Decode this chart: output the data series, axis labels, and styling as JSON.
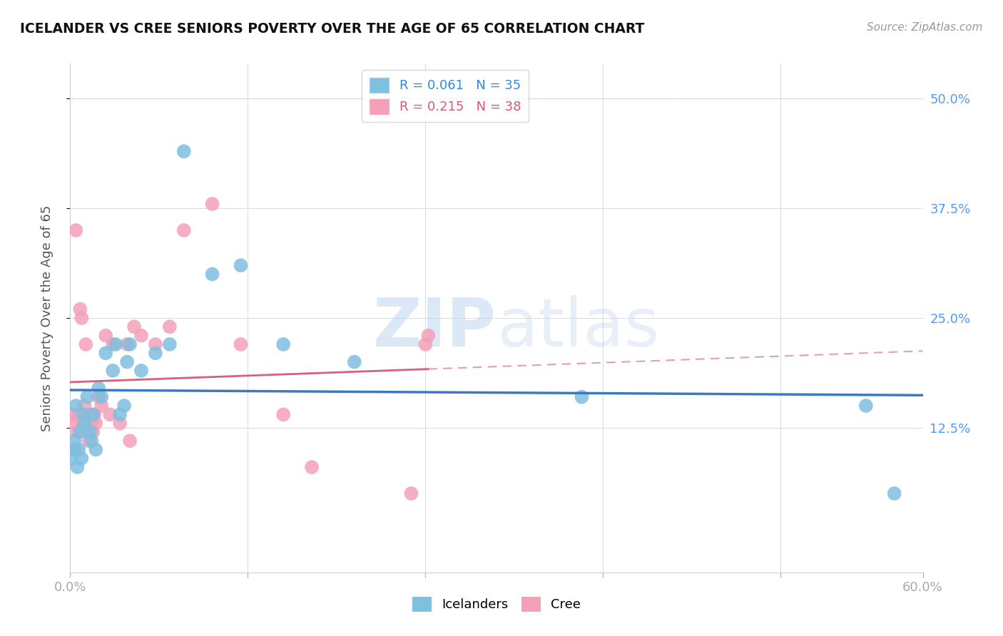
{
  "title": "ICELANDER VS CREE SENIORS POVERTY OVER THE AGE OF 65 CORRELATION CHART",
  "source": "Source: ZipAtlas.com",
  "ylabel": "Seniors Poverty Over the Age of 65",
  "xlim": [
    0.0,
    0.6
  ],
  "ylim": [
    -0.04,
    0.54
  ],
  "ytick_vals": [
    0.125,
    0.25,
    0.375,
    0.5
  ],
  "right_ytick_labels": [
    "12.5%",
    "25.0%",
    "37.5%",
    "50.0%"
  ],
  "watermark": "ZIPatlas",
  "icelander_color": "#7fbfdf",
  "cree_color": "#f4a0b8",
  "icelander_line_color": "#3a7bbf",
  "cree_line_color": "#d9607a",
  "cree_dash_color": "#e0a0b0",
  "R_icelander": 0.061,
  "N_icelander": 35,
  "R_cree": 0.215,
  "N_cree": 38,
  "icelander_x": [
    0.001,
    0.002,
    0.003,
    0.004,
    0.005,
    0.006,
    0.007,
    0.008,
    0.009,
    0.01,
    0.012,
    0.014,
    0.015,
    0.016,
    0.018,
    0.02,
    0.022,
    0.025,
    0.03,
    0.032,
    0.035,
    0.038,
    0.04,
    0.042,
    0.05,
    0.06,
    0.07,
    0.08,
    0.1,
    0.12,
    0.15,
    0.2,
    0.36,
    0.56,
    0.58
  ],
  "icelander_y": [
    0.09,
    0.1,
    0.11,
    0.15,
    0.08,
    0.1,
    0.12,
    0.09,
    0.14,
    0.13,
    0.16,
    0.12,
    0.11,
    0.14,
    0.1,
    0.17,
    0.16,
    0.21,
    0.19,
    0.22,
    0.14,
    0.15,
    0.2,
    0.22,
    0.19,
    0.21,
    0.22,
    0.44,
    0.3,
    0.31,
    0.22,
    0.2,
    0.16,
    0.15,
    0.05
  ],
  "cree_x": [
    0.001,
    0.002,
    0.003,
    0.004,
    0.005,
    0.006,
    0.007,
    0.008,
    0.009,
    0.01,
    0.011,
    0.012,
    0.013,
    0.014,
    0.015,
    0.016,
    0.017,
    0.018,
    0.02,
    0.022,
    0.025,
    0.028,
    0.03,
    0.035,
    0.04,
    0.042,
    0.045,
    0.05,
    0.06,
    0.07,
    0.08,
    0.1,
    0.12,
    0.15,
    0.17,
    0.24,
    0.25,
    0.252
  ],
  "cree_y": [
    0.14,
    0.13,
    0.1,
    0.35,
    0.12,
    0.14,
    0.26,
    0.25,
    0.13,
    0.15,
    0.22,
    0.12,
    0.11,
    0.14,
    0.13,
    0.12,
    0.14,
    0.13,
    0.16,
    0.15,
    0.23,
    0.14,
    0.22,
    0.13,
    0.22,
    0.11,
    0.24,
    0.23,
    0.22,
    0.24,
    0.35,
    0.38,
    0.22,
    0.14,
    0.08,
    0.05,
    0.22,
    0.23
  ],
  "background_color": "#ffffff",
  "grid_color": "#dddddd"
}
